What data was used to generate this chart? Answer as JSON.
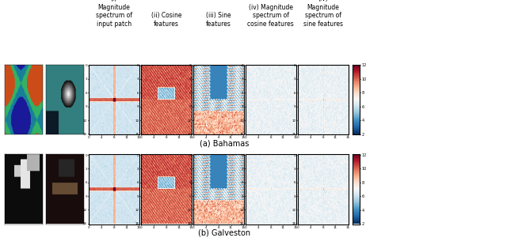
{
  "title_row1": "(a) Bahamas",
  "title_row2": "(b) Galveston",
  "col_labels": [
    "(i)\nMagnitude\nspectrum of\ninput patch",
    "(ii) Cosine\nfeatures",
    "(iii) Sine\nfeatures",
    "(iv) Magnitude\nspectrum of\ncosine features",
    "(iv)\nMagnitude\nspectrum of\nsine features"
  ],
  "background": "#f0f0f0",
  "fig_bg": "#e8e8e8",
  "colorbar_ticks_top": [
    2,
    4,
    6,
    8,
    10,
    12
  ],
  "colorbar_ticks_bot": [
    2,
    4,
    6,
    8,
    10,
    12
  ],
  "seed_bahamas": 42,
  "seed_galveston": 123
}
